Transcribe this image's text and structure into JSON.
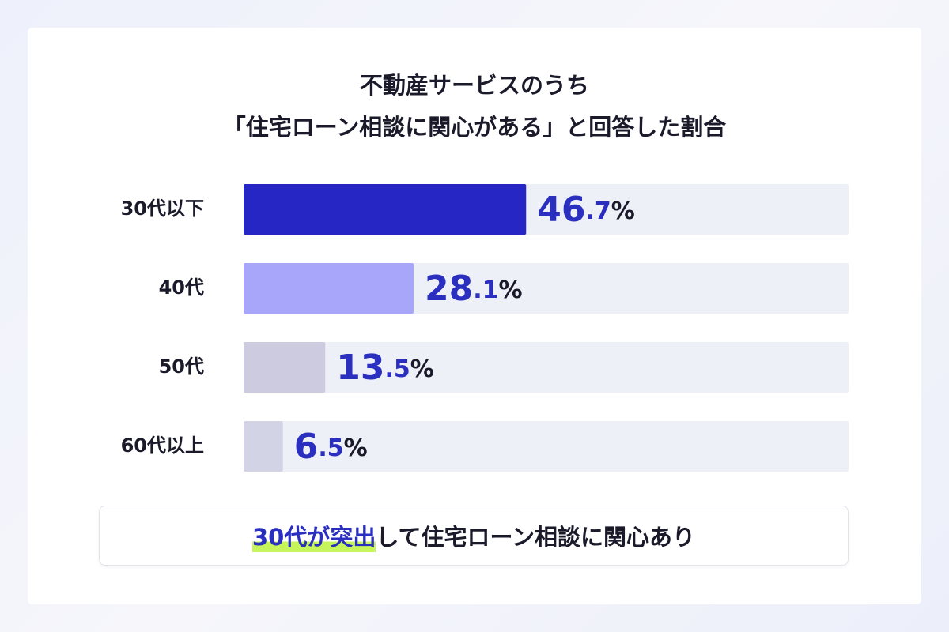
{
  "chart_data": {
    "type": "bar",
    "orientation": "horizontal",
    "title": [
      "不動産サービスのうち",
      "「住宅ローン相談に関心がある」と回答した割合"
    ],
    "categories": [
      "30代以下",
      "40代",
      "50代",
      "60代以上"
    ],
    "values": [
      46.7,
      28.1,
      13.5,
      6.5
    ],
    "value_labels": [
      "46.7%",
      "28.1%",
      "13.5%",
      "6.5%"
    ],
    "colors": [
      "#2626c4",
      "#a8a6fb",
      "#cccbe0",
      "#d3d3e6"
    ],
    "xlim": [
      0,
      100
    ],
    "annotation": {
      "highlight": "30代が突出",
      "text": "して住宅ローン相談に関心あり"
    }
  }
}
